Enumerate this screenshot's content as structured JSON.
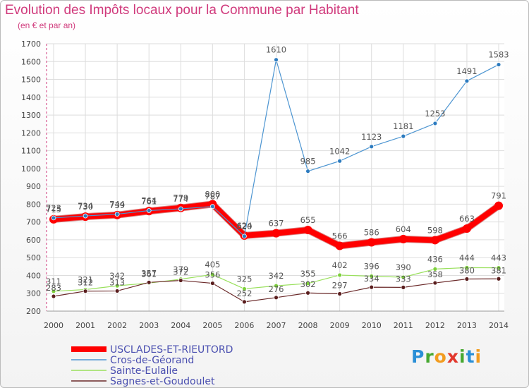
{
  "chart_data": {
    "type": "line",
    "title": "Evolution des Impôts locaux pour la Commune par Habitant",
    "subtitle": "(en € et par an)",
    "xlabel": "",
    "ylabel": "",
    "x": [
      "2000",
      "2001",
      "2002",
      "2003",
      "2004",
      "2005",
      "2006",
      "2007",
      "2008",
      "2009",
      "2010",
      "2011",
      "2012",
      "2013",
      "2014"
    ],
    "ylim": [
      200,
      1700
    ],
    "yticks": [
      200,
      300,
      400,
      500,
      600,
      700,
      800,
      900,
      1000,
      1100,
      1200,
      1300,
      1400,
      1500,
      1600,
      1700
    ],
    "series": [
      {
        "name": "USCLADES-ET-RIEUTORD",
        "color": "#ff0000",
        "values": [
          715,
          730,
          739,
          761,
          779,
          800,
          624,
          637,
          655,
          566,
          586,
          604,
          598,
          663,
          791
        ]
      },
      {
        "name": "Cros-de-Géorand",
        "color": "#4d95d1",
        "values": [
          723,
          734,
          744,
          764,
          774,
          787,
          620,
          1610,
          985,
          1042,
          1123,
          1181,
          1253,
          1491,
          1583
        ]
      },
      {
        "name": "Sainte-Eulalie",
        "color": "#99e05c",
        "values": [
          311,
          321,
          342,
          357,
          379,
          405,
          325,
          342,
          355,
          402,
          396,
          390,
          436,
          444,
          443
        ]
      },
      {
        "name": "Sagnes-et-Goudoulet",
        "color": "#6b2a2a",
        "values": [
          283,
          312,
          313,
          361,
          372,
          356,
          252,
          276,
          302,
          297,
          334,
          333,
          358,
          380,
          381
        ]
      }
    ]
  },
  "branding": {
    "logo": [
      "P",
      "r",
      "o",
      "x",
      "i",
      "t",
      "i"
    ]
  }
}
